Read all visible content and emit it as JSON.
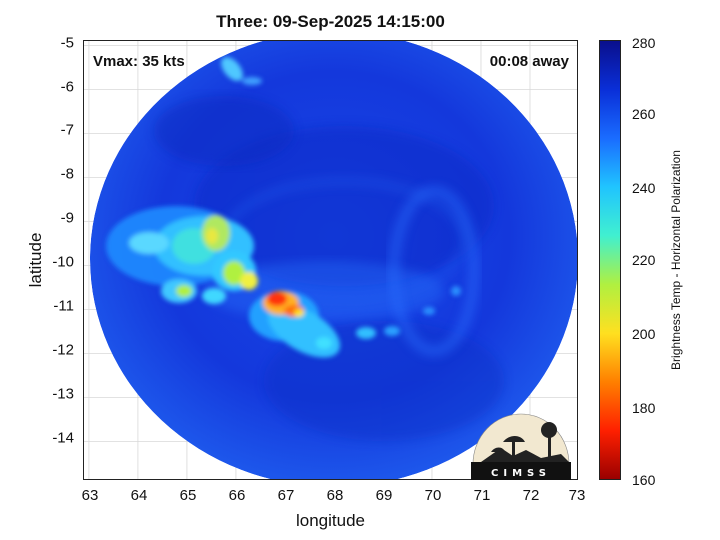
{
  "title": "Three: 09-Sep-2025 14:15:00",
  "vmax_label": "Vmax: 35 kts",
  "time_label": "00:08 away",
  "xlabel": "longitude",
  "ylabel": "latitude",
  "xticks": [
    "63",
    "64",
    "65",
    "66",
    "67",
    "68",
    "69",
    "70",
    "71",
    "72",
    "73"
  ],
  "yticks": [
    "-5",
    "-6",
    "-7",
    "-8",
    "-9",
    "-10",
    "-11",
    "-12",
    "-13",
    "-14"
  ],
  "colorbar": {
    "label": "Brightness Temp - Horizontal Polarization",
    "ticks": [
      "280",
      "260",
      "240",
      "220",
      "200",
      "180",
      "160"
    ],
    "colors": [
      "#0a0f8c",
      "#0a2fd8",
      "#1a6cff",
      "#20c4ff",
      "#40f0d0",
      "#b0f040",
      "#ffe020",
      "#ff8000",
      "#ff2000",
      "#9a0000"
    ]
  },
  "logo_text": "CIMSS",
  "chart_data": {
    "type": "heatmap",
    "title": "Three: 09-Sep-2025 14:15:00",
    "xlabel": "longitude",
    "ylabel": "latitude",
    "xlim": [
      62.9,
      73
    ],
    "ylim": [
      -14.9,
      -4.9
    ],
    "colorbar_range": [
      160,
      280
    ],
    "colorbar_label": "Brightness Temp - Horizontal Polarization",
    "background_value": 262,
    "features": [
      {
        "lon": 64.6,
        "lat": -10.0,
        "value": 235
      },
      {
        "lon": 65.4,
        "lat": -9.7,
        "value": 225
      },
      {
        "lon": 65.0,
        "lat": -10.6,
        "value": 228
      },
      {
        "lon": 66.8,
        "lat": -11.0,
        "value": 192
      },
      {
        "lon": 67.4,
        "lat": -11.4,
        "value": 225
      },
      {
        "lon": 68.6,
        "lat": -11.7,
        "value": 240
      },
      {
        "lon": 65.9,
        "lat": -5.6,
        "value": 240
      }
    ]
  }
}
